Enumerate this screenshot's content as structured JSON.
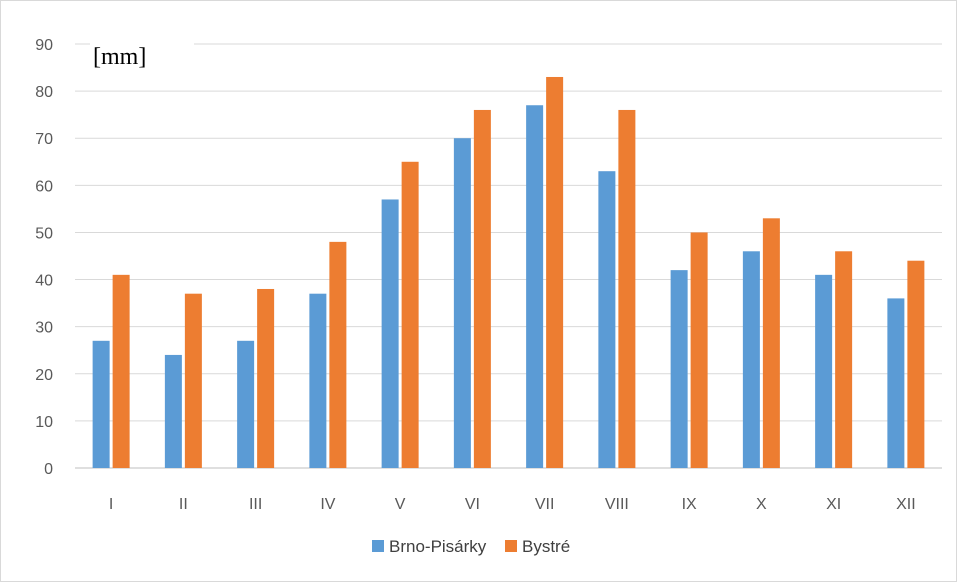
{
  "chart_data": {
    "type": "bar",
    "title": "",
    "unit_label": "[mm]",
    "xlabel": "",
    "ylabel": "",
    "ylim": [
      0,
      90
    ],
    "yticks": [
      0,
      10,
      20,
      30,
      40,
      50,
      60,
      70,
      80,
      90
    ],
    "grid": true,
    "legend_position": "bottom",
    "categories": [
      "I",
      "II",
      "III",
      "IV",
      "V",
      "VI",
      "VII",
      "VIII",
      "IX",
      "X",
      "XI",
      "XII"
    ],
    "series": [
      {
        "name": "Brno-Pisárky",
        "color": "#5b9bd5",
        "values": [
          27,
          24,
          27,
          37,
          57,
          70,
          77,
          63,
          42,
          46,
          41,
          36
        ]
      },
      {
        "name": "Bystré",
        "color": "#ed7d31",
        "values": [
          41,
          37,
          38,
          48,
          65,
          76,
          83,
          76,
          50,
          53,
          46,
          44
        ]
      }
    ]
  }
}
